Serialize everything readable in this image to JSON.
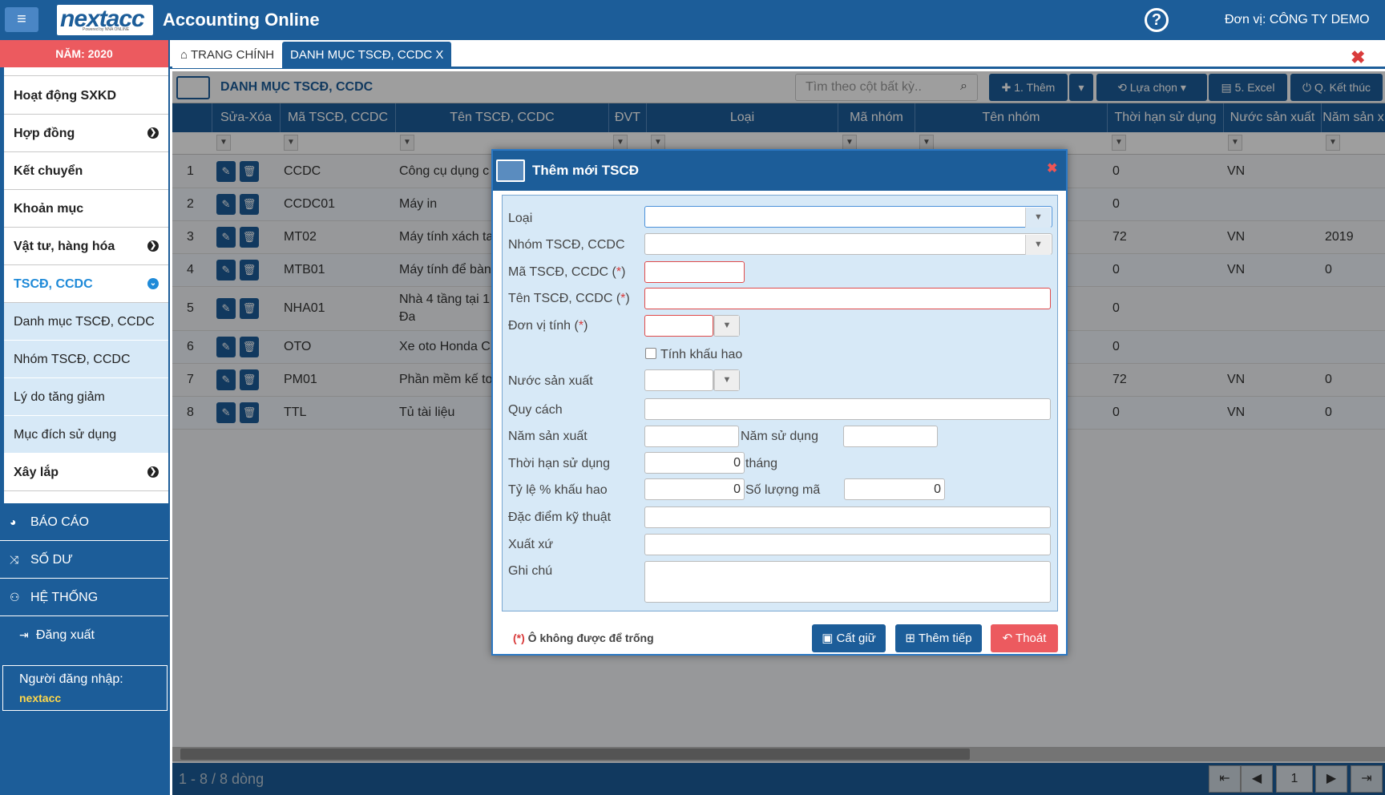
{
  "header": {
    "app_title": "Accounting Online",
    "logo_text": "nextacc",
    "logo_subtext": "Powered by NNA ONLINE",
    "unit_label": "Đơn vị: CÔNG TY DEMO",
    "help_label": "?"
  },
  "sidebar": {
    "year": "NĂM: 2020",
    "items": [
      {
        "label": "Hoạt động SXKD",
        "arrow": false
      },
      {
        "label": "Hợp đồng",
        "arrow": true
      },
      {
        "label": "Kết chuyển",
        "arrow": false
      },
      {
        "label": "Khoản mục",
        "arrow": false
      },
      {
        "label": "Vật tư, hàng hóa",
        "arrow": true
      },
      {
        "label": "TSCĐ, CCDC",
        "arrow": true
      }
    ],
    "subitems": [
      "Danh mục TSCĐ, CCDC",
      "Nhóm TSCĐ, CCDC",
      "Lý do tăng giảm",
      "Mục đích sử dụng"
    ],
    "xaylap": "Xây lắp",
    "sections": [
      "BÁO CÁO",
      "SỐ DƯ",
      "HỆ THỐNG"
    ],
    "logout": "Đăng xuất",
    "user_label": "Người đăng nhập:",
    "user_name": "nextacc",
    "arrow_glyph": "›",
    "arrow_down_glyph": "⌄"
  },
  "tabs": {
    "home": "TRANG CHÍNH",
    "active": "DANH MỤC TSCĐ, CCDC X"
  },
  "toolbar": {
    "title": "DANH MỤC TSCĐ, CCDC",
    "search_placeholder": "Tìm theo cột bất kỳ..",
    "add": "1. Thêm",
    "choose": "Lựa chọn",
    "excel": "5. Excel",
    "exit": "Q. Kết thúc"
  },
  "grid": {
    "columns": [
      "Sửa-Xóa",
      "Mã TSCĐ, CCDC",
      "Tên TSCĐ, CCDC",
      "ĐVT",
      "Loại",
      "Mã nhóm",
      "Tên nhóm",
      "Thời hạn sử dụng",
      "Nước sản xuất",
      "Năm sản x"
    ],
    "rows": [
      {
        "no": "1",
        "code": "CCDC",
        "name": "Công cụ dụng c",
        "term": "0",
        "country": "VN",
        "year": ""
      },
      {
        "no": "2",
        "code": "CCDC01",
        "name": "Máy in",
        "term": "0",
        "country": "",
        "year": ""
      },
      {
        "no": "3",
        "code": "MT02",
        "name": "Máy tính xách ta",
        "term": "72",
        "country": "VN",
        "year": "2019"
      },
      {
        "no": "4",
        "code": "MTB01",
        "name": "Máy tính để bàn",
        "term": "0",
        "country": "VN",
        "year": "0"
      },
      {
        "no": "5",
        "code": "NHA01",
        "name": "Nhà 4 tầng tại 1",
        "name2": "Đa",
        "term": "0",
        "country": "",
        "year": ""
      },
      {
        "no": "6",
        "code": "OTO",
        "name": "Xe oto Honda C",
        "term": "0",
        "country": "",
        "year": ""
      },
      {
        "no": "7",
        "code": "PM01",
        "name": "Phần mềm kế to",
        "term": "72",
        "country": "VN",
        "year": "0"
      },
      {
        "no": "8",
        "code": "TTL",
        "name": "Tủ tài liệu",
        "term": "0",
        "country": "VN",
        "year": "0"
      }
    ]
  },
  "footer": {
    "count": "1 - 8 / 8 dòng",
    "page": "1"
  },
  "modal": {
    "title": "Thêm mới TSCĐ",
    "labels": {
      "loai": "Loại",
      "nhom": "Nhóm TSCĐ, CCDC",
      "ma": "Mã TSCĐ, CCDC (",
      "ten": "Tên TSCĐ, CCDC (",
      "dvt": "Đơn vị tính (",
      "khauhao": "Tính khấu hao",
      "nuoc": "Nước sản xuất",
      "quycach": "Quy cách",
      "namsx": "Năm sản xuất",
      "namsd": "Năm sử dụng",
      "thoihan": "Thời hạn sử dụng",
      "thang": "tháng",
      "tyle": "Tỷ lệ % khấu hao",
      "soluong": "Số lượng mã",
      "dacdiem": "Đặc điểm kỹ thuật",
      "xuatxu": "Xuất xứ",
      "ghichu": "Ghi chú"
    },
    "values": {
      "thoihan": "0",
      "tyle": "0",
      "soluong": "0"
    },
    "req_star": "*",
    "req_close": ")",
    "note": "Ô không được để trống",
    "note_prefix": "(*)",
    "buttons": {
      "save": "Cất giữ",
      "next": "Thêm tiếp",
      "exit": "Thoát"
    }
  }
}
